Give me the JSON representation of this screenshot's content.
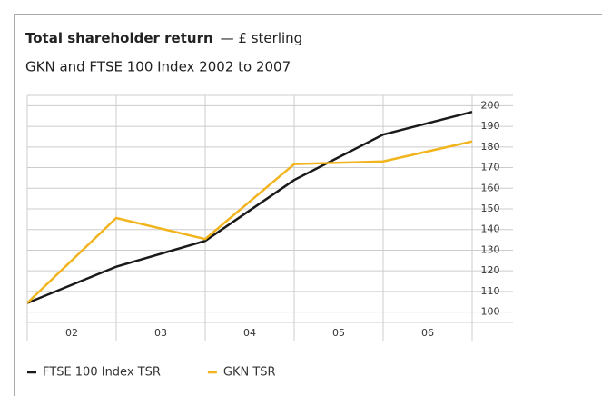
{
  "chart_data": {
    "type": "line",
    "title": "Total shareholder return",
    "title_suffix": "— £ sterling",
    "subtitle": "GKN and FTSE 100 Index 2002 to 2007",
    "x": [
      2002,
      2003,
      2004,
      2005,
      2006,
      2007
    ],
    "xlim": [
      2002,
      2007
    ],
    "xticks": [
      {
        "value": 2002.5,
        "label": "02"
      },
      {
        "value": 2003.5,
        "label": "03"
      },
      {
        "value": 2004.5,
        "label": "04"
      },
      {
        "value": 2005.5,
        "label": "05"
      },
      {
        "value": 2006.5,
        "label": "06"
      }
    ],
    "ylim": [
      95,
      205
    ],
    "yticks": [
      100,
      110,
      120,
      130,
      140,
      150,
      160,
      170,
      180,
      190,
      200
    ],
    "grid": true,
    "series": [
      {
        "name": "FTSE 100 Index TSR",
        "color": "#1a1a1a",
        "values": [
          104.4,
          122,
          134.5,
          164,
          186,
          197
        ]
      },
      {
        "name": "GKN TSR",
        "color": "#f2b41c",
        "values": [
          104.4,
          145.6,
          135.4,
          171.7,
          173,
          182.7
        ]
      }
    ]
  }
}
